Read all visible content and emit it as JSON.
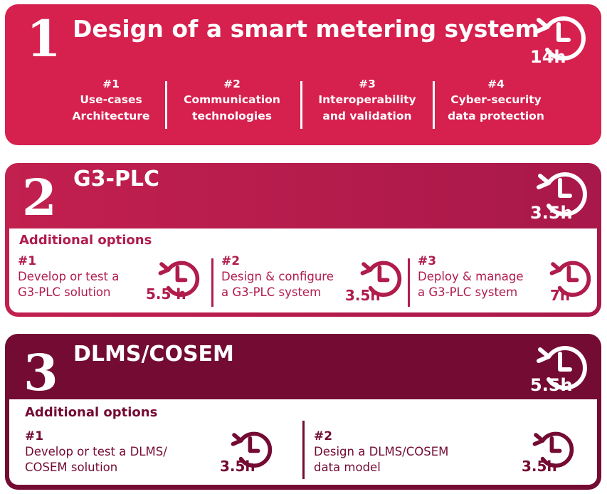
{
  "sections": [
    {
      "number": "1",
      "title": "Design of a smart metering system",
      "duration": "14h",
      "topics": [
        {
          "num": "#1",
          "text": "Use-cases\nArchitecture"
        },
        {
          "num": "#2",
          "text": "Communication\ntechnologies"
        },
        {
          "num": "#3",
          "text": "Interoperability\nand validation"
        },
        {
          "num": "#4",
          "text": "Cyber-security\ndata protection"
        }
      ]
    },
    {
      "number": "2",
      "title": "G3-PLC",
      "duration": "3.5h",
      "options_heading": "Additional options",
      "options": [
        {
          "num": "#1",
          "text": "Develop or test a\nG3-PLC solution",
          "duration": "5.5 h"
        },
        {
          "num": "#2",
          "text": "Design & configure\na G3-PLC system",
          "duration": "3.5h"
        },
        {
          "num": "#3",
          "text": "Deploy & manage\na G3-PLC system",
          "duration": "7h"
        }
      ]
    },
    {
      "number": "3",
      "title": "DLMS/COSEM",
      "duration": "5.5h",
      "options_heading": "Additional options",
      "options": [
        {
          "num": "#1",
          "text": "Develop or test a DLMS/\nCOSEM solution",
          "duration": "3.5h"
        },
        {
          "num": "#2",
          "text": "Design a DLMS/COSEM\ndata model",
          "duration": "3.5h"
        }
      ]
    }
  ],
  "colors": {
    "section1": "#d6204e",
    "section2": "#b01c4c",
    "section3": "#730b33",
    "section2_text": "#b01c4c",
    "section3_text": "#730b33"
  },
  "icons": {
    "duration": "clock-countdown-icon"
  }
}
